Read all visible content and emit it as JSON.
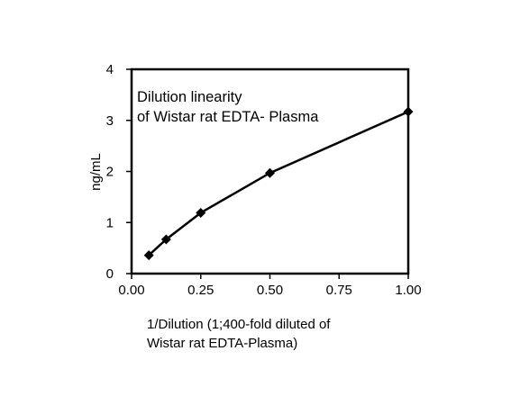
{
  "chart_data": {
    "type": "line",
    "title_lines": [
      "Dilution linearity",
      "of Wistar rat EDTA- Plasma"
    ],
    "xlabel_lines": [
      "1/Dilution (1;400-fold diluted  of",
      "Wistar rat  EDTA-Plasma)"
    ],
    "ylabel": "ng/mL",
    "xlim": [
      0,
      1
    ],
    "ylim": [
      0,
      4
    ],
    "x_ticks": [
      0,
      0.25,
      0.5,
      0.75,
      1.0
    ],
    "x_tick_labels": [
      "0.00",
      "0.25",
      "0.50",
      "0.75",
      "1.00"
    ],
    "y_ticks": [
      0,
      1,
      2,
      3,
      4
    ],
    "y_tick_labels": [
      "0",
      "1",
      "2",
      "3",
      "4"
    ],
    "grid": false,
    "marker": "diamond",
    "color": "#000000",
    "series": [
      {
        "x": [
          0.0625,
          0.125,
          0.25,
          0.5,
          1.0
        ],
        "y": [
          0.36,
          0.67,
          1.19,
          1.97,
          3.17
        ]
      }
    ]
  }
}
